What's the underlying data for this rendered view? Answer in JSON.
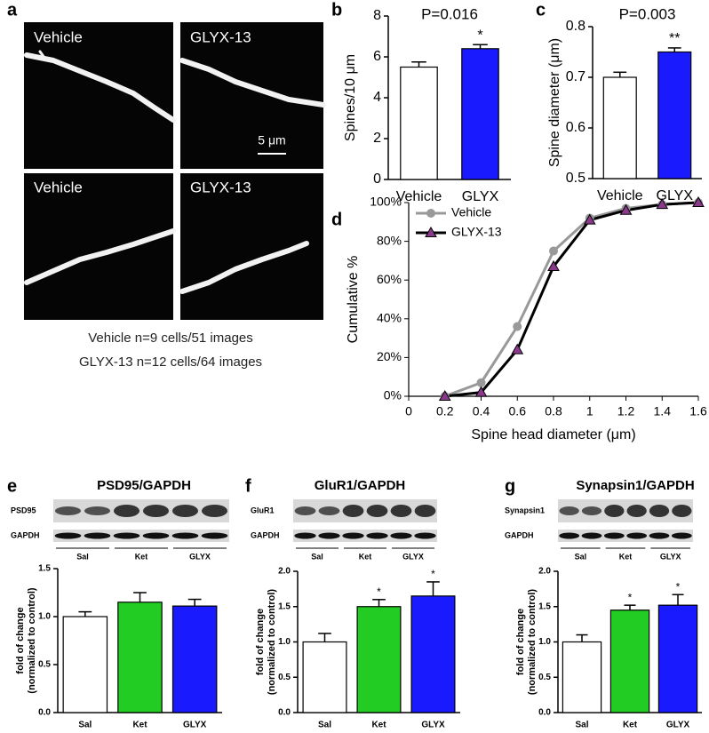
{
  "images": {
    "panel": "a",
    "labels": [
      "Vehicle",
      "GLYX-13",
      "Vehicle",
      "GLYX-13"
    ],
    "scale_bar": "5 μm",
    "captions": [
      "Vehicle n=9 cells/51 images",
      "GLYX-13 n=12 cells/64 images"
    ]
  },
  "chart_data": [
    {
      "type": "bar",
      "panel": "b",
      "annotation": "P=0.016",
      "ylabel": "Spines/10 μm",
      "categories": [
        "Vehicle",
        "GLYX"
      ],
      "values": [
        5.5,
        6.4
      ],
      "errors": [
        0.25,
        0.2
      ],
      "colors": [
        "#ffffff",
        "#1a1aff"
      ],
      "value_annotations": [
        null,
        "*"
      ],
      "ylim": [
        0,
        8
      ],
      "yticks": [
        0,
        2,
        4,
        6,
        8
      ]
    },
    {
      "type": "bar",
      "panel": "c",
      "annotation": "P=0.003",
      "ylabel": "Spine diameter (μm)",
      "categories": [
        "Vehicle",
        "GLYX"
      ],
      "values": [
        0.7,
        0.75
      ],
      "errors": [
        0.01,
        0.008
      ],
      "colors": [
        "#ffffff",
        "#1a1aff"
      ],
      "value_annotations": [
        null,
        "**"
      ],
      "ylim": [
        0.5,
        0.8
      ],
      "yticks": [
        0.5,
        0.6,
        0.7,
        0.8
      ]
    },
    {
      "type": "line",
      "panel": "d",
      "xlabel": "Spine head diameter (μm)",
      "ylabel": "Cumulative %",
      "x": [
        0.2,
        0.4,
        0.6,
        0.8,
        1.0,
        1.2,
        1.4,
        1.6
      ],
      "series": [
        {
          "name": "Vehicle",
          "color": "#999999",
          "marker": "circle",
          "marker_color": "#999999",
          "values": [
            0,
            7,
            36,
            75,
            92,
            97,
            99,
            100
          ]
        },
        {
          "name": "GLYX-13",
          "color": "#000000",
          "marker": "triangle",
          "marker_color": "#8b3a8b",
          "values": [
            0,
            2,
            24,
            67,
            91,
            96,
            99,
            100
          ]
        }
      ],
      "xlim": [
        0,
        1.6
      ],
      "xticks": [
        0,
        0.2,
        0.4,
        0.6,
        0.8,
        1,
        1.2,
        1.4,
        1.6
      ],
      "ylim": [
        0,
        100
      ],
      "yticks": [
        {
          "value": 0,
          "label": "0%"
        },
        {
          "value": 20,
          "label": "20%"
        },
        {
          "value": 40,
          "label": "40%"
        },
        {
          "value": 60,
          "label": "60%"
        },
        {
          "value": 80,
          "label": "80%"
        },
        {
          "value": 100,
          "label": "100%"
        }
      ],
      "legend": "upper left"
    },
    {
      "type": "bar",
      "panel": "e",
      "title": "PSD95/GAPDH",
      "blot": {
        "rows": [
          "PSD95",
          "GAPDH"
        ],
        "lanes": [
          "Sal",
          "Ket",
          "GLYX"
        ]
      },
      "ylabel": [
        "fold of change",
        "(normalized to control)"
      ],
      "categories": [
        "Sal",
        "Ket",
        "GLYX"
      ],
      "values": [
        1.0,
        1.15,
        1.11
      ],
      "errors": [
        0.05,
        0.1,
        0.07
      ],
      "colors": [
        "#ffffff",
        "#22cc22",
        "#1a1aff"
      ],
      "ylim": [
        0,
        1.5
      ],
      "yticks": [
        {
          "value": 0,
          "label": "0.0"
        },
        0.5,
        {
          "value": 1,
          "label": "1.0"
        },
        1.5
      ]
    },
    {
      "type": "bar",
      "panel": "f",
      "title": "GluR1/GAPDH",
      "blot": {
        "rows": [
          "GluR1",
          "GAPDH"
        ],
        "lanes": [
          "Sal",
          "Ket",
          "GLYX"
        ]
      },
      "ylabel": [
        "fold of change",
        "(normalized to control)"
      ],
      "categories": [
        "Sal",
        "Ket",
        "GLYX"
      ],
      "values": [
        1.0,
        1.5,
        1.65
      ],
      "errors": [
        0.12,
        0.1,
        0.2
      ],
      "colors": [
        "#ffffff",
        "#22cc22",
        "#1a1aff"
      ],
      "value_annotations": [
        null,
        "*",
        "*"
      ],
      "ylim": [
        0,
        2
      ],
      "yticks": [
        {
          "value": 0,
          "label": "0.0"
        },
        0.5,
        {
          "value": 1,
          "label": "1.0"
        },
        1.5,
        {
          "value": 2,
          "label": "2.0"
        }
      ]
    },
    {
      "type": "bar",
      "panel": "g",
      "title": "Synapsin1/GAPDH",
      "blot": {
        "rows": [
          "Synapsin1",
          "GAPDH"
        ],
        "lanes": [
          "Sal",
          "Ket",
          "GLYX"
        ]
      },
      "ylabel": [
        "fold of change",
        "(normalized to control)"
      ],
      "categories": [
        "Sal",
        "Ket",
        "GLYX"
      ],
      "values": [
        1.0,
        1.45,
        1.52
      ],
      "errors": [
        0.1,
        0.07,
        0.15
      ],
      "colors": [
        "#ffffff",
        "#22cc22",
        "#1a1aff"
      ],
      "value_annotations": [
        null,
        "*",
        "*"
      ],
      "ylim": [
        0,
        2
      ],
      "yticks": [
        {
          "value": 0,
          "label": "0.0"
        },
        0.5,
        {
          "value": 1,
          "label": "1.0"
        },
        1.5,
        {
          "value": 2,
          "label": "2.0"
        }
      ]
    }
  ]
}
